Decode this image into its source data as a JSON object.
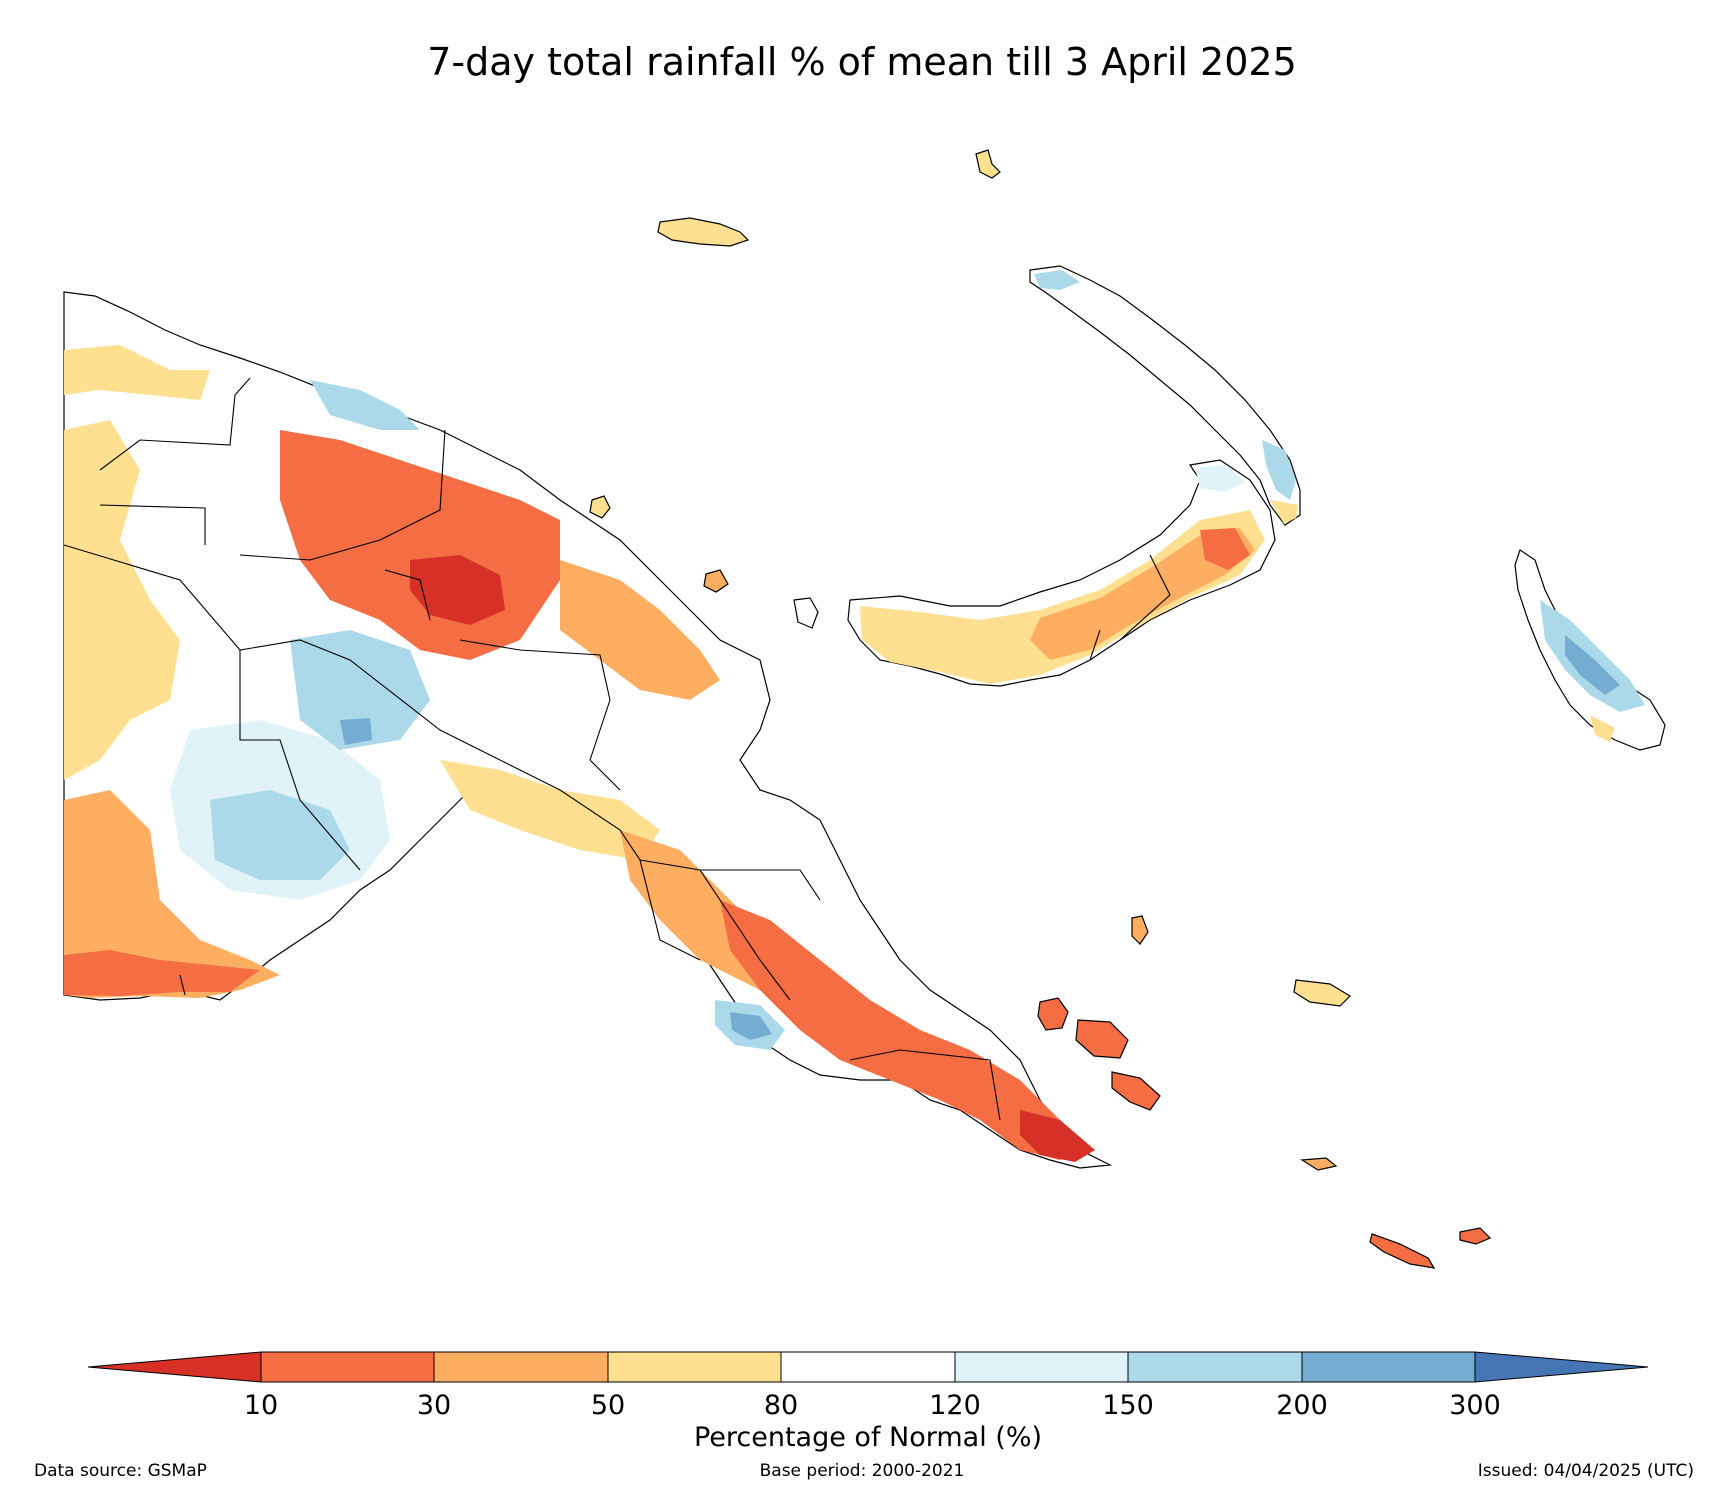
{
  "title": "7-day total rainfall % of mean till 3 April 2025",
  "colorbar": {
    "label": "Percentage of Normal (%)",
    "ticks": [
      "10",
      "30",
      "50",
      "80",
      "120",
      "150",
      "200",
      "300"
    ],
    "colors": {
      "below_10": "#d73027",
      "10_30": "#f46d43",
      "30_50": "#fdae61",
      "50_80": "#fee090",
      "80_120": "#ffffff",
      "120_150": "#e0f3f8",
      "150_200": "#abd9e9",
      "200_300": "#74add1",
      "above_300": "#4575b4"
    }
  },
  "footer": {
    "data_source": "Data source: GSMaP",
    "base_period": "Base period: 2000-2021",
    "issued": "Issued: 04/04/2025 (UTC)"
  }
}
